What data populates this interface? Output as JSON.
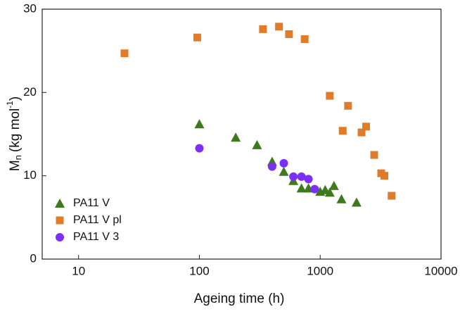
{
  "chart_data": {
    "type": "scatter",
    "x_label": "Ageing time (h)",
    "y_label": {
      "symbol": "M",
      "sub": "n",
      "unit": "(kg mol",
      "sup": "-1",
      "close": ")"
    },
    "xscale": "log",
    "xlim": [
      5,
      10000
    ],
    "xticks": [
      10,
      100,
      1000,
      10000
    ],
    "ylim": [
      0,
      30
    ],
    "yticks": [
      0,
      10,
      20,
      30
    ],
    "legend": "lower left",
    "series": [
      {
        "name": "PA11 V",
        "color": "#3d7a1c",
        "marker": "triangle",
        "x": [
          100,
          200,
          300,
          400,
          500,
          600,
          700,
          800,
          1000,
          1100,
          1200,
          1300,
          1500,
          2000
        ],
        "values": [
          16.2,
          14.6,
          13.7,
          11.7,
          10.5,
          9.4,
          8.5,
          8.5,
          8.1,
          8.3,
          8.0,
          8.8,
          7.2,
          6.8
        ]
      },
      {
        "name": "PA11 V pl",
        "color": "#e07b2a",
        "marker": "square",
        "x": [
          24,
          96,
          336,
          456,
          552,
          744,
          1200,
          1536,
          1700,
          2200,
          2400,
          2800,
          3200,
          3400,
          3900
        ],
        "values": [
          24.7,
          26.6,
          27.6,
          27.9,
          27.0,
          26.4,
          19.6,
          15.4,
          18.4,
          15.2,
          15.9,
          12.5,
          10.3,
          10.0,
          7.6
        ]
      },
      {
        "name": "PA11 V 3",
        "color": "#7b2ff7",
        "marker": "circle",
        "x": [
          100,
          400,
          500,
          600,
          700,
          800,
          900
        ],
        "values": [
          13.3,
          11.1,
          11.5,
          9.9,
          9.9,
          9.6,
          8.4
        ]
      }
    ]
  }
}
